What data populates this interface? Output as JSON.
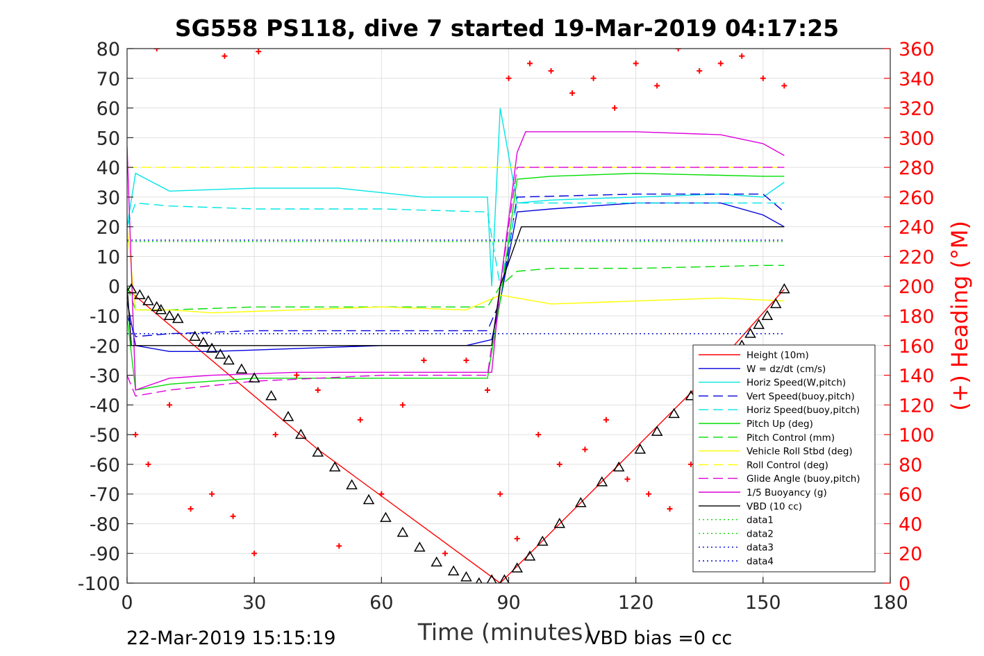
{
  "chart_data": {
    "type": "line",
    "title": "SG558 PS118, dive 7 started 19-Mar-2019 04:17:25",
    "xlabel": "Time (minutes)",
    "ylabel": "",
    "y2label": "(+) Heading (°M)",
    "xlim": [
      0,
      180
    ],
    "ylim": [
      -100,
      80
    ],
    "y2lim": [
      0,
      360
    ],
    "x_ticks": [
      0,
      30,
      60,
      90,
      120,
      150,
      180
    ],
    "y_ticks": [
      80,
      70,
      60,
      50,
      40,
      30,
      20,
      10,
      0,
      -10,
      -20,
      -30,
      -40,
      -50,
      -60,
      -70,
      -80,
      -90,
      -100
    ],
    "y2_ticks": [
      360,
      340,
      320,
      300,
      280,
      260,
      240,
      220,
      200,
      180,
      160,
      140,
      120,
      100,
      80,
      60,
      40,
      20,
      0
    ],
    "grid": true,
    "legend_position": "lower-right",
    "footer_left": "22-Mar-2019 15:15:19",
    "footer_right": "VBD bias =0 cc",
    "colors": {
      "red": "#ff0000",
      "blue": "#0000dd",
      "cyan": "#00e5e5",
      "green": "#00dd00",
      "yellow": "#ffff00",
      "magenta": "#dd00dd",
      "black": "#000000",
      "grid": "#e0e0e0"
    },
    "legend": [
      {
        "label": "Height (10m)",
        "color": "#ff0000",
        "dash": "solid"
      },
      {
        "label": "W = dz/dt (cm/s)",
        "color": "#0000dd",
        "dash": "solid"
      },
      {
        "label": "Horiz Speed(W,pitch)",
        "color": "#00e5e5",
        "dash": "solid"
      },
      {
        "label": "Vert Speed(buoy,pitch)",
        "color": "#0000dd",
        "dash": "dash"
      },
      {
        "label": "Horiz Speed(buoy,pitch)",
        "color": "#00e5e5",
        "dash": "dash"
      },
      {
        "label": "Pitch Up (deg)",
        "color": "#00dd00",
        "dash": "solid"
      },
      {
        "label": "Pitch Control (mm)",
        "color": "#00dd00",
        "dash": "dash"
      },
      {
        "label": "Vehicle Roll Stbd (deg)",
        "color": "#ffff00",
        "dash": "solid"
      },
      {
        "label": "Roll Control (deg)",
        "color": "#ffff00",
        "dash": "dash"
      },
      {
        "label": "Glide Angle (buoy,pitch)",
        "color": "#dd00dd",
        "dash": "dash"
      },
      {
        "label": "1/5 Buoyancy (g)",
        "color": "#dd00dd",
        "dash": "solid"
      },
      {
        "label": "VBD (10 cc)",
        "color": "#000000",
        "dash": "solid"
      },
      {
        "label": "data1",
        "color": "#00dd00",
        "dash": "dot"
      },
      {
        "label": "data2",
        "color": "#00dd00",
        "dash": "dot"
      },
      {
        "label": "data3",
        "color": "#0000dd",
        "dash": "dot"
      },
      {
        "label": "data4",
        "color": "#0000dd",
        "dash": "dot"
      }
    ],
    "series": [
      {
        "name": "Height (10m)",
        "x": [
          0,
          45,
          88,
          135,
          155
        ],
        "y": [
          -1,
          -55,
          -100,
          -33,
          -1
        ]
      },
      {
        "name": "W = dz/dt (cm/s)",
        "x": [
          0,
          2,
          10,
          20,
          40,
          60,
          80,
          86,
          88,
          92,
          100,
          120,
          140,
          150,
          155
        ],
        "y": [
          -5,
          -20,
          -22,
          -22,
          -21,
          -20,
          -20,
          -18,
          -5,
          25,
          26,
          28,
          28,
          24,
          20
        ]
      },
      {
        "name": "Horiz Speed(W,pitch)",
        "x": [
          0,
          2,
          10,
          30,
          50,
          70,
          85,
          86,
          88,
          92,
          100,
          120,
          140,
          150,
          155
        ],
        "y": [
          20,
          38,
          32,
          33,
          33,
          30,
          30,
          0,
          60,
          28,
          29,
          30,
          31,
          30,
          35
        ]
      },
      {
        "name": "Vert Speed(buoy,pitch)",
        "x": [
          0,
          2,
          10,
          30,
          60,
          85,
          88,
          92,
          120,
          150,
          155
        ],
        "y": [
          -10,
          -17,
          -16,
          -15,
          -15,
          -15,
          -5,
          30,
          31,
          31,
          25
        ]
      },
      {
        "name": "Horiz Speed(buoy,pitch)",
        "x": [
          0,
          2,
          10,
          30,
          60,
          85,
          88,
          92,
          120,
          150,
          155
        ],
        "y": [
          20,
          28,
          27,
          26,
          26,
          25,
          0,
          28,
          28,
          28,
          28
        ]
      },
      {
        "name": "Pitch Up (deg)",
        "x": [
          0,
          2,
          10,
          30,
          60,
          85,
          88,
          92,
          100,
          120,
          150,
          155
        ],
        "y": [
          -10,
          -35,
          -33,
          -31,
          -31,
          -31,
          -5,
          36,
          37,
          38,
          37,
          37
        ]
      },
      {
        "name": "Pitch Control (mm)",
        "x": [
          0,
          2,
          10,
          30,
          60,
          85,
          88,
          92,
          100,
          120,
          150,
          155
        ],
        "y": [
          0,
          -8,
          -8,
          -7,
          -7,
          -7,
          0,
          5,
          6,
          6,
          7,
          7
        ]
      },
      {
        "name": "Vehicle Roll Stbd (deg)",
        "x": [
          0,
          2,
          10,
          20,
          40,
          60,
          80,
          88,
          92,
          100,
          120,
          140,
          155
        ],
        "y": [
          20,
          -8,
          -8,
          -9,
          -8,
          -7,
          -8,
          -3,
          -4,
          -6,
          -5,
          -4,
          -5
        ]
      },
      {
        "name": "Roll Control (deg)",
        "x": [
          0,
          88,
          92,
          155
        ],
        "y": [
          40,
          40,
          40,
          40
        ]
      },
      {
        "name": "Glide Angle (buoy,pitch)",
        "x": [
          0,
          2,
          10,
          30,
          60,
          85,
          88,
          92,
          120,
          150,
          155
        ],
        "y": [
          -30,
          -37,
          -35,
          -32,
          -30,
          -30,
          0,
          40,
          40,
          40,
          40
        ]
      },
      {
        "name": "1/5 Buoyancy (g)",
        "x": [
          0,
          2,
          10,
          20,
          40,
          60,
          86,
          88,
          92,
          94,
          120,
          140,
          150,
          155
        ],
        "y": [
          47,
          -35,
          -31,
          -30,
          -29,
          -29,
          -29,
          0,
          45,
          52,
          52,
          51,
          48,
          44
        ]
      },
      {
        "name": "VBD (10 cc)",
        "x": [
          0,
          1,
          86,
          88,
          93,
          155
        ],
        "y": [
          0,
          -20,
          -20,
          0,
          20,
          20
        ]
      },
      {
        "name": "data1",
        "x": [
          0,
          155
        ],
        "y": [
          15,
          15
        ]
      },
      {
        "name": "data2",
        "x": [
          0,
          155
        ],
        "y": [
          -16,
          -16
        ]
      },
      {
        "name": "data3",
        "x": [
          0,
          155
        ],
        "y": [
          15.5,
          15.5
        ]
      },
      {
        "name": "data4",
        "x": [
          0,
          155
        ],
        "y": [
          -16,
          -16
        ]
      }
    ],
    "depth_markers_triangle": {
      "x": [
        1,
        3,
        5,
        7,
        8,
        10,
        12,
        16,
        18,
        20,
        22,
        24,
        27,
        30,
        34,
        38,
        41,
        45,
        49,
        53,
        57,
        61,
        65,
        69,
        73,
        77,
        80,
        83,
        86,
        89,
        92,
        95,
        98,
        102,
        107,
        112,
        116,
        121,
        125,
        129,
        133,
        137,
        141,
        145,
        147,
        149,
        151,
        153,
        155
      ],
      "y": [
        -1,
        -3,
        -5,
        -7,
        -8,
        -10,
        -11,
        -17,
        -19,
        -21,
        -23,
        -25,
        -28,
        -31,
        -37,
        -44,
        -50,
        -56,
        -61,
        -67,
        -72,
        -78,
        -83,
        -88,
        -93,
        -96,
        -98,
        -100,
        -99,
        -99,
        -95,
        -91,
        -86,
        -80,
        -73,
        -66,
        -61,
        -55,
        -49,
        -43,
        -37,
        -32,
        -24,
        -20,
        -16,
        -13,
        -10,
        -6,
        -1
      ]
    },
    "heading_markers_plus": {
      "x": [
        7,
        23,
        31,
        90,
        95,
        100,
        105,
        110,
        115,
        120,
        125,
        130,
        135,
        140,
        145,
        150,
        155,
        2,
        5,
        10,
        15,
        20,
        25,
        30,
        35,
        40,
        45,
        50,
        55,
        60,
        65,
        70,
        75,
        80,
        85,
        88,
        92,
        97,
        102,
        108,
        113,
        118,
        123,
        128,
        133,
        138,
        143,
        148,
        153
      ],
      "y": [
        360,
        355,
        358,
        340,
        350,
        345,
        330,
        340,
        320,
        350,
        335,
        360,
        345,
        350,
        355,
        340,
        335,
        100,
        80,
        120,
        50,
        60,
        45,
        20,
        100,
        140,
        130,
        25,
        110,
        60,
        120,
        150,
        20,
        150,
        130,
        60,
        30,
        100,
        80,
        90,
        110,
        70,
        60,
        50,
        80,
        70,
        40,
        60,
        20
      ]
    }
  }
}
